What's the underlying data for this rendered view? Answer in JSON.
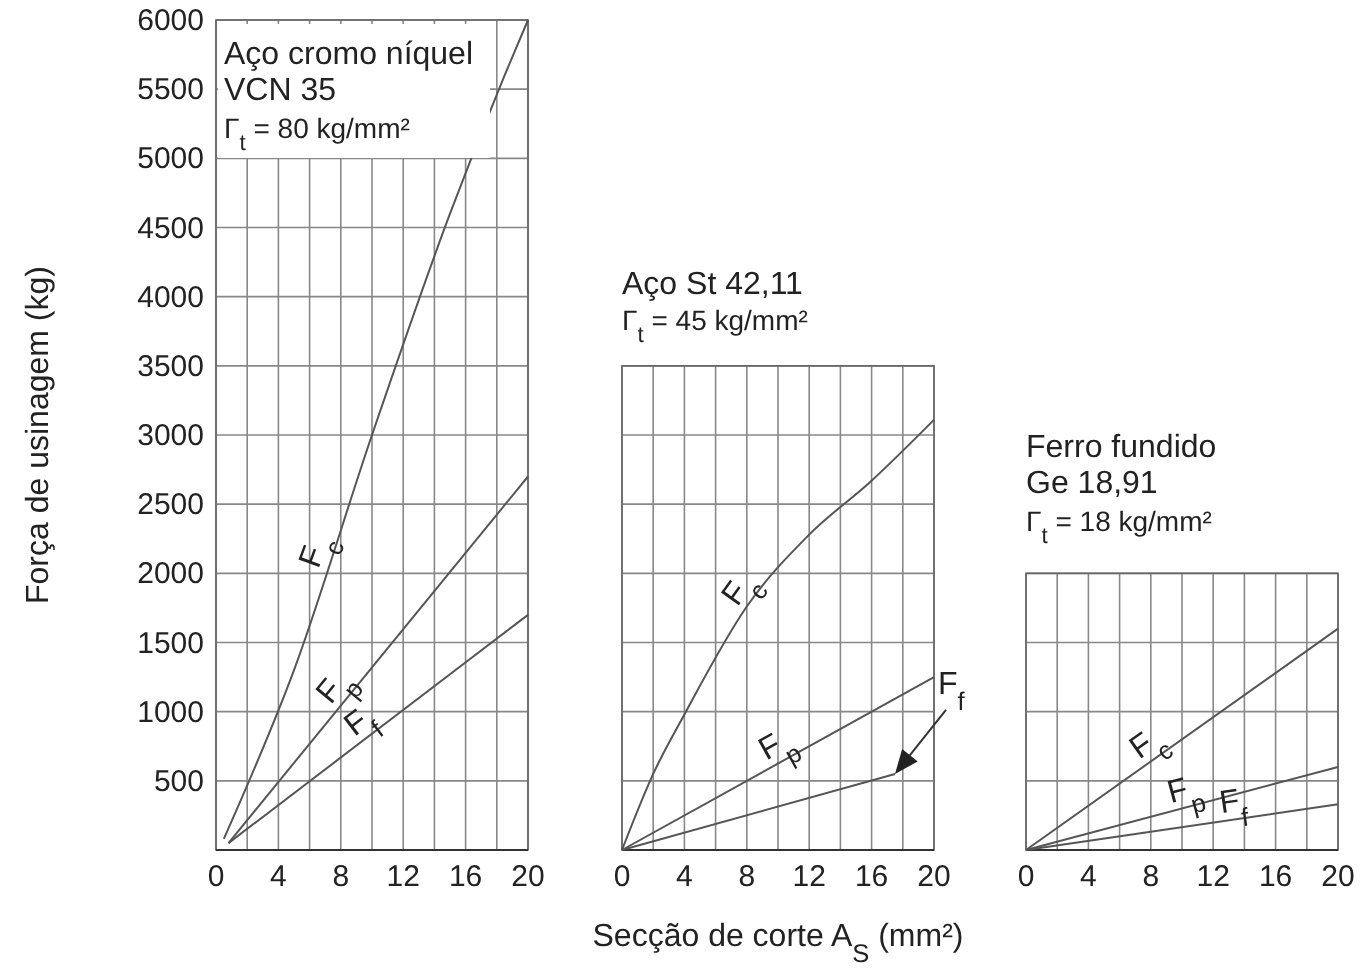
{
  "chart_data": [
    {
      "type": "line",
      "title": "Aço cromo níquel",
      "subtitle": "VCN 35",
      "annotations": [
        "Γ$_{t}$ = 80 kg/mm²"
      ],
      "ylabel": "Força de usinagem (kg)",
      "xlim": [
        0,
        20
      ],
      "ylim": [
        0,
        6000
      ],
      "xticks": [
        0,
        {
          "value": 2,
          "label": null
        },
        4,
        {
          "value": 6,
          "label": null
        },
        8,
        {
          "value": 10,
          "label": null
        },
        12,
        {
          "value": 14,
          "label": null
        },
        16,
        {
          "value": 18,
          "label": null
        },
        20
      ],
      "yticks": [
        {
          "value": 0,
          "label": null
        },
        500,
        1000,
        1500,
        2000,
        2500,
        3000,
        3500,
        4000,
        4500,
        5000,
        5500,
        6000
      ],
      "grid": true,
      "series": [
        {
          "name": "F$_{c}$",
          "color": "#555555",
          "x": [
            0.5,
            5,
            10,
            15,
            18.5,
            20
          ],
          "values": [
            80,
            1300,
            3000,
            4600,
            5600,
            6000
          ]
        },
        {
          "name": "F$_{p}$",
          "color": "#555555",
          "x": [
            0.8,
            20
          ],
          "values": [
            50,
            2700
          ]
        },
        {
          "name": "F$_{f}$",
          "color": "#555555",
          "x": [
            0.8,
            20
          ],
          "values": [
            50,
            1700
          ]
        }
      ]
    },
    {
      "type": "line",
      "title": "Aço St 42,11",
      "annotations": [
        "Γ$_{t}$ = 45 kg/mm²"
      ],
      "xlabel": "Secção de corte A$_{S}$ (mm²)",
      "xlim": [
        0,
        20
      ],
      "ylim": [
        0,
        3500
      ],
      "xticks": [
        0,
        {
          "value": 2,
          "label": null
        },
        4,
        {
          "value": 6,
          "label": null
        },
        8,
        {
          "value": 10,
          "label": null
        },
        12,
        {
          "value": 14,
          "label": null
        },
        16,
        {
          "value": 18,
          "label": null
        },
        20
      ],
      "yticks": [
        0,
        500,
        1000,
        1500,
        2000,
        2500,
        3000,
        3500
      ],
      "tick_labels": "x",
      "grid": true,
      "series": [
        {
          "name": "F$_{c}$",
          "color": "#555555",
          "x": [
            0,
            2,
            4,
            8,
            12,
            16,
            20
          ],
          "values": [
            0,
            550,
            980,
            1760,
            2280,
            2670,
            3110
          ]
        },
        {
          "name": "F$_{p}$",
          "color": "#555555",
          "x": [
            0,
            20
          ],
          "values": [
            0,
            1250
          ]
        },
        {
          "name": "F$_{f}$",
          "color": "#555555",
          "x": [
            0,
            17.5
          ],
          "values": [
            0,
            550
          ]
        }
      ]
    },
    {
      "type": "line",
      "title": "Ferro fundido",
      "subtitle": "Ge 18,91",
      "annotations": [
        "Γ$_{t}$ = 18 kg/mm²"
      ],
      "xlim": [
        0,
        20
      ],
      "ylim": [
        0,
        2000
      ],
      "xticks": [
        0,
        {
          "value": 2,
          "label": null
        },
        4,
        {
          "value": 6,
          "label": null
        },
        8,
        {
          "value": 10,
          "label": null
        },
        12,
        {
          "value": 14,
          "label": null
        },
        16,
        {
          "value": 18,
          "label": null
        },
        20
      ],
      "yticks": [
        0,
        500,
        1000,
        1500,
        2000
      ],
      "tick_labels": "x",
      "grid": true,
      "series": [
        {
          "name": "F$_{c}$",
          "color": "#555555",
          "x": [
            0,
            20
          ],
          "values": [
            0,
            1600
          ]
        },
        {
          "name": "F$_{p}$",
          "color": "#555555",
          "x": [
            0,
            20
          ],
          "values": [
            0,
            600
          ]
        },
        {
          "name": "F$_{f}$",
          "color": "#555555",
          "x": [
            0,
            20
          ],
          "values": [
            0,
            330
          ]
        }
      ]
    }
  ]
}
